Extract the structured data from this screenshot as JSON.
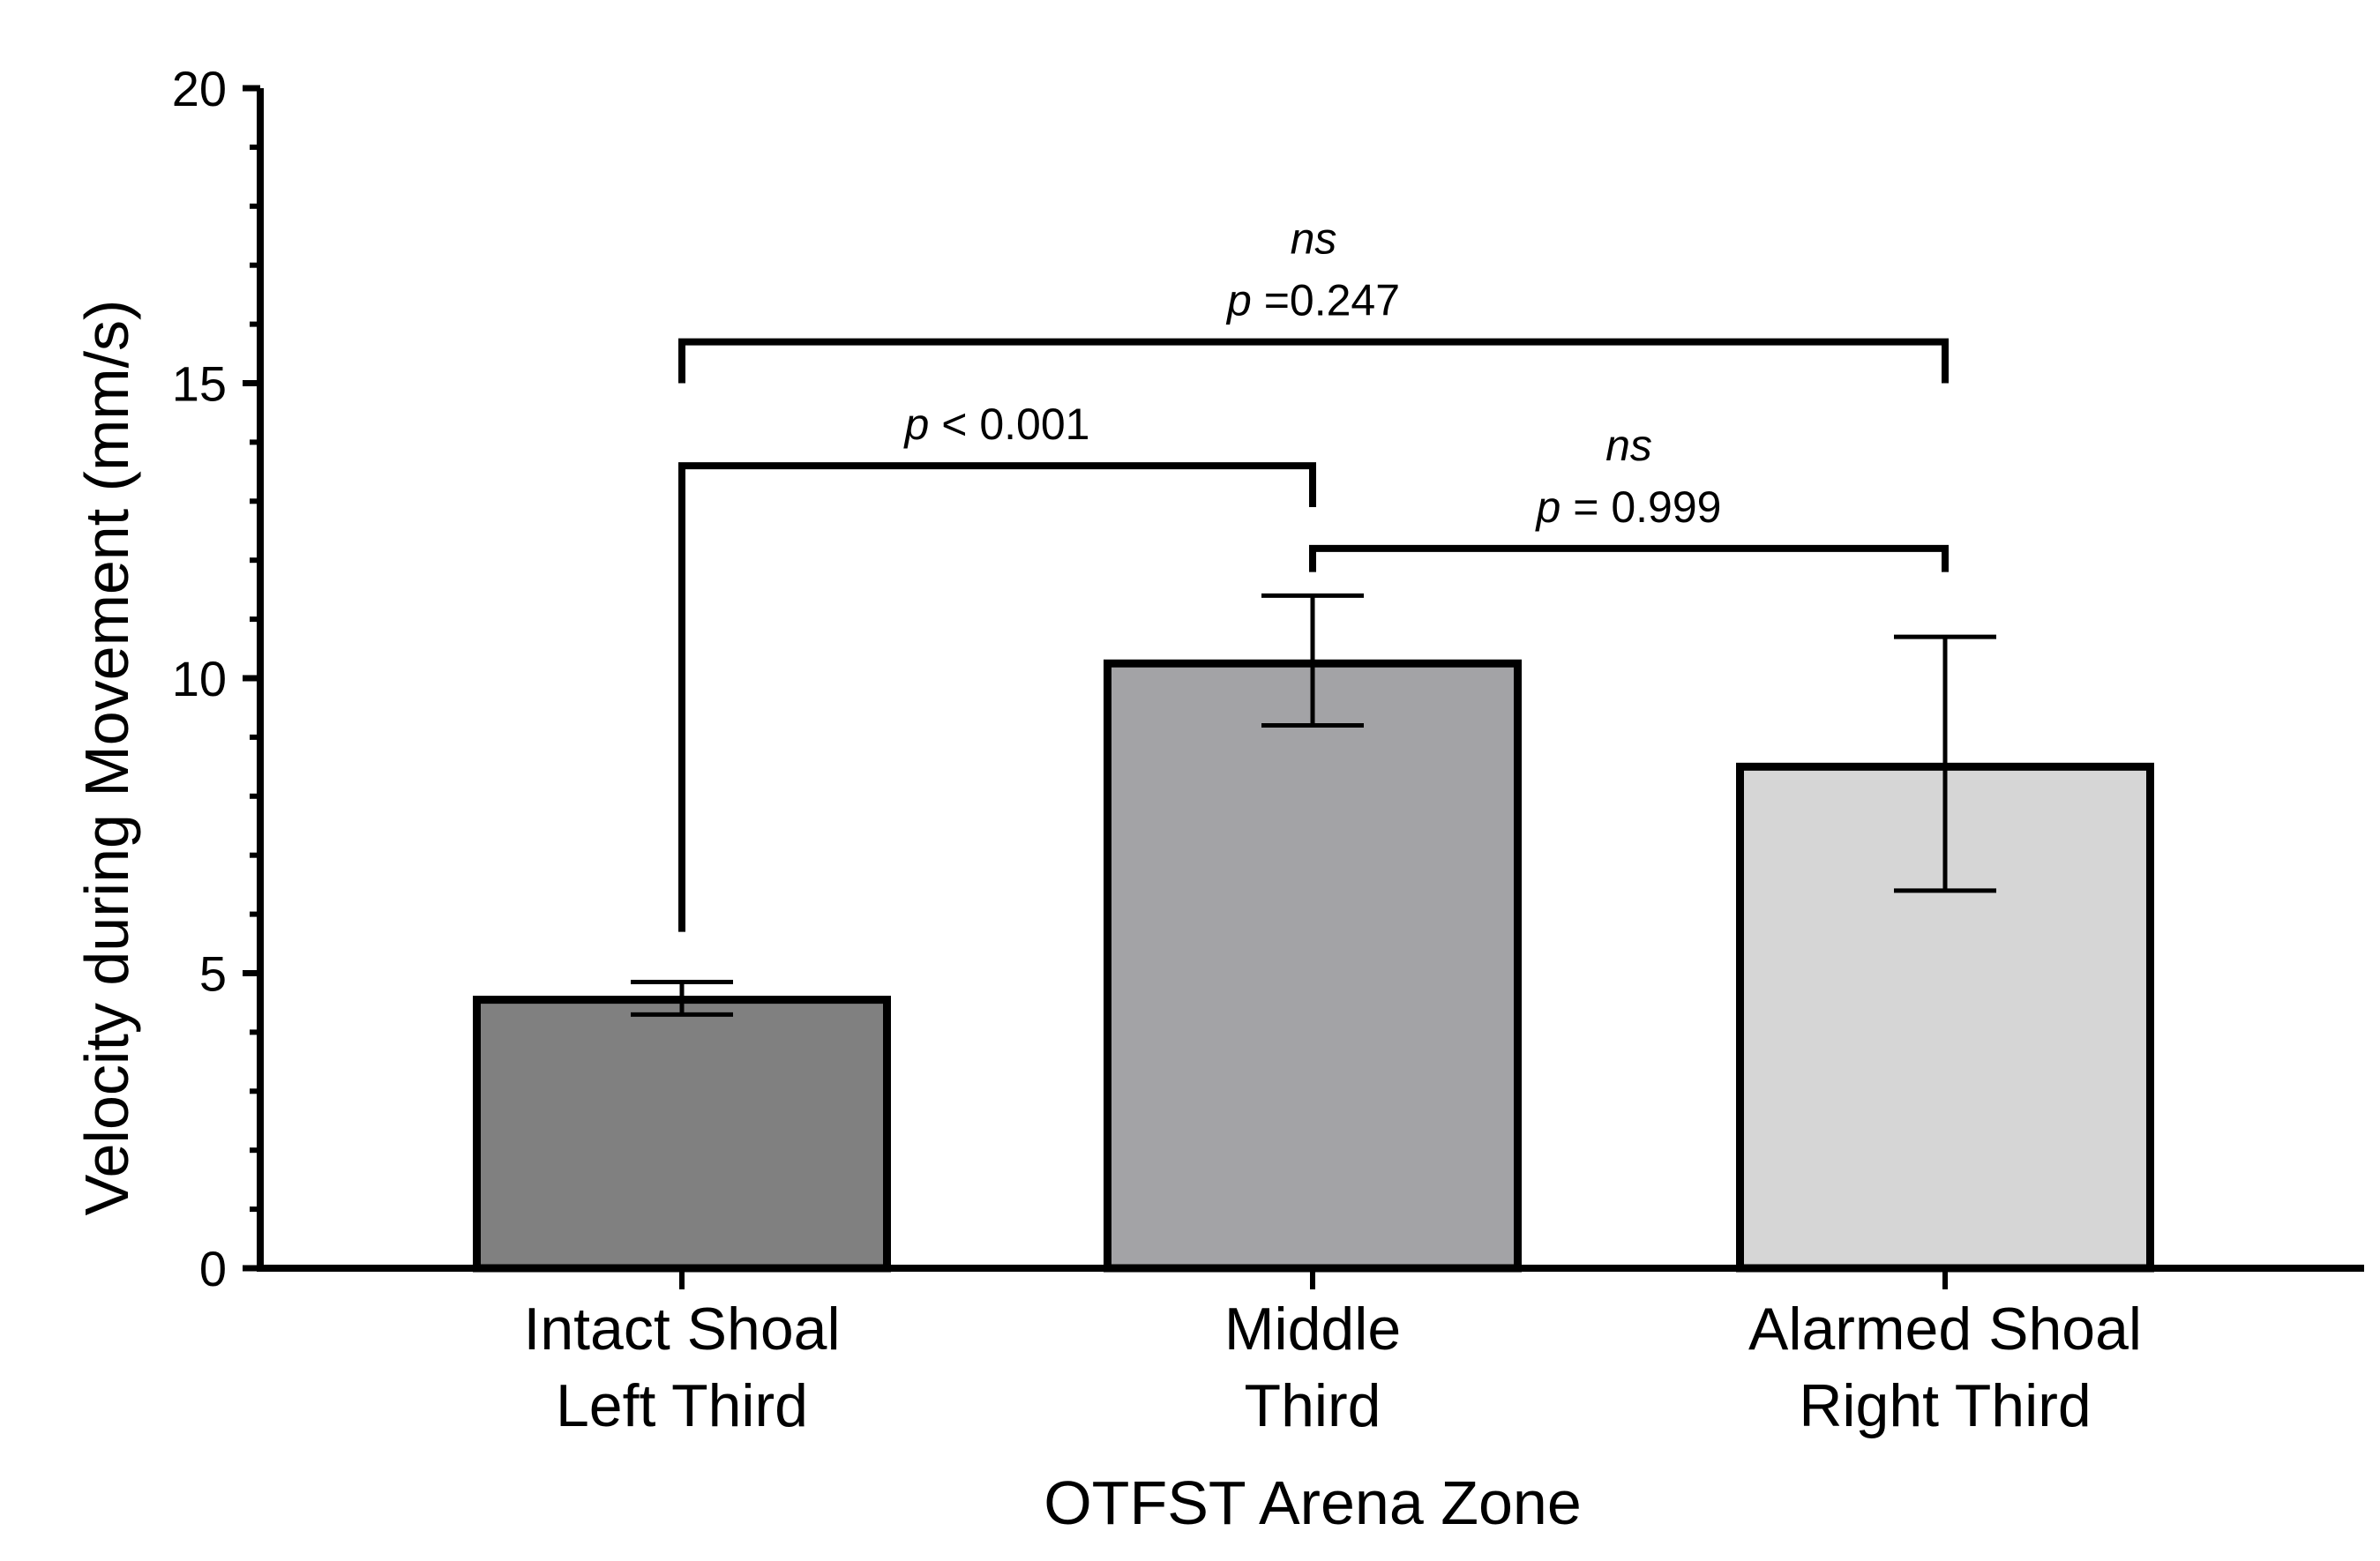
{
  "chart_data": {
    "type": "bar",
    "title": "",
    "xlabel": "OTFST  Arena Zone",
    "ylabel": "Velocity during  Movement  (mm/s)",
    "ylim": [
      0,
      20
    ],
    "yticks": [
      0,
      5,
      10,
      15,
      20
    ],
    "ytick_labels": [
      "0",
      "5",
      "10",
      "15",
      "20"
    ],
    "minor_ticks_per_major": 4,
    "categories": [
      {
        "line1": "Intact Shoal",
        "line2": "Left Third"
      },
      {
        "line1": "Middle",
        "line2": "Third"
      },
      {
        "line1": "Alarmed Shoal",
        "line2": "Right Third"
      }
    ],
    "values": [
      4.55,
      10.25,
      8.5
    ],
    "error_low": [
      4.3,
      9.2,
      6.4
    ],
    "error_high": [
      4.85,
      11.4,
      10.7
    ],
    "colors": [
      "#808080",
      "#a3a3a6",
      "#d6d6d6"
    ],
    "grid": false,
    "comparisons": [
      {
        "from": 0,
        "to": 1,
        "y": 13.6,
        "left_drop_to": 5.7,
        "right_drop_to": 12.9,
        "label_ns": "",
        "label_p_italic": "p",
        "label_p_rest": " < 0.001"
      },
      {
        "from": 1,
        "to": 2,
        "y": 12.2,
        "left_drop_to": 11.8,
        "right_drop_to": 11.8,
        "label_ns": "ns",
        "label_p_italic": "p",
        "label_p_rest": " = 0.999"
      },
      {
        "from": 0,
        "to": 2,
        "y": 15.7,
        "left_drop_to": 15.0,
        "right_drop_to": 15.0,
        "label_ns": "ns",
        "label_p_italic": "p",
        "label_p_rest": " =0.247"
      }
    ]
  }
}
